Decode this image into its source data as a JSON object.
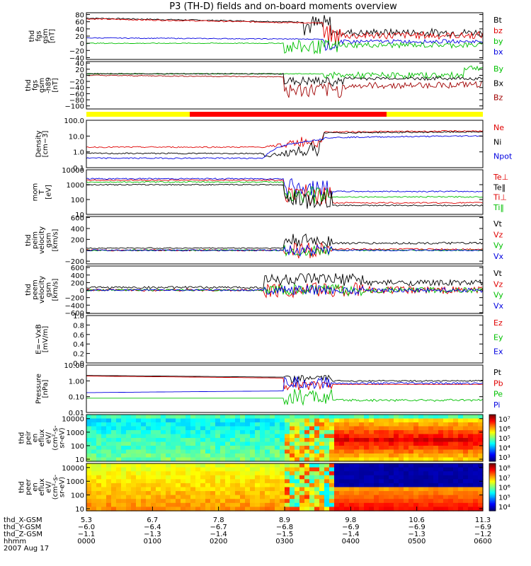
{
  "title": "P3 (TH-D) fields and on-board moments overview",
  "colors": {
    "black": "#000000",
    "red": "#e00000",
    "green": "#00c000",
    "blue": "#0000e0",
    "darkred": "#a00000"
  },
  "bar_colors": {
    "yellow": "#ffff00",
    "red": "#ff0000"
  },
  "panels": [
    {
      "id": "fgs",
      "ylabel": [
        "thd",
        "fgs",
        "gsm",
        "[nT]"
      ],
      "ticks": [
        "80",
        "60",
        "40",
        "20",
        "0",
        "−20",
        "−40"
      ],
      "tick_values": [
        80,
        60,
        40,
        20,
        0,
        -20,
        -40
      ],
      "ylim": [
        -45,
        85
      ],
      "legend": [
        {
          "text": "Bt",
          "color": "black"
        },
        {
          "text": "bz",
          "color": "red"
        },
        {
          "text": "by",
          "color": "green"
        },
        {
          "text": "bx",
          "color": "blue"
        }
      ]
    },
    {
      "id": "fgs2",
      "ylabel": [
        "thd",
        "fgs",
        "gsm",
        "-h89",
        "[nT]"
      ],
      "ticks": [
        "40",
        "20",
        "0",
        "−20",
        "−40",
        "−60",
        "−80",
        "−100"
      ],
      "tick_values": [
        40,
        20,
        0,
        -20,
        -40,
        -60,
        -80,
        -100
      ],
      "ylim": [
        -110,
        45
      ],
      "legend": [
        {
          "text": "By",
          "color": "green"
        },
        {
          "text": "Bx",
          "color": "black"
        },
        {
          "text": "Bz",
          "color": "darkred"
        }
      ]
    },
    {
      "id": "density",
      "ylabel": [
        "Density",
        "[cm−3]"
      ],
      "ticks": [
        "100.0",
        "10.0",
        "1.0",
        "0.1"
      ],
      "tick_values": [
        100,
        10,
        1,
        0.1
      ],
      "ylim": [
        0.1,
        100
      ],
      "log": true,
      "legend": [
        {
          "text": "Ne",
          "color": "red"
        },
        {
          "text": "Ni",
          "color": "black"
        },
        {
          "text": "Npot",
          "color": "blue"
        }
      ]
    },
    {
      "id": "temp",
      "ylabel": [
        "mom",
        "T",
        "[eV]"
      ],
      "ticks": [
        "10000",
        "1000",
        "100",
        "10"
      ],
      "tick_values": [
        10000,
        1000,
        100,
        10
      ],
      "ylim": [
        10,
        10000
      ],
      "log": true,
      "legend": [
        {
          "text": "Te⊥",
          "color": "red"
        },
        {
          "text": "Te‖",
          "color": "black"
        },
        {
          "text": "Ti⊥",
          "color": "red"
        },
        {
          "text": "Ti‖",
          "color": "green"
        }
      ]
    },
    {
      "id": "peim",
      "ylabel": [
        "thd",
        "peim",
        "velocity",
        "gsm",
        "[km/s]"
      ],
      "ticks": [
        "600",
        "400",
        "200",
        "0",
        "−200"
      ],
      "tick_values": [
        600,
        400,
        200,
        0,
        -200
      ],
      "ylim": [
        -250,
        620
      ],
      "legend": [
        {
          "text": "Vt",
          "color": "black"
        },
        {
          "text": "Vz",
          "color": "red"
        },
        {
          "text": "Vy",
          "color": "green"
        },
        {
          "text": "Vx",
          "color": "blue"
        }
      ]
    },
    {
      "id": "peem",
      "ylabel": [
        "thd",
        "peem",
        "velocity",
        "gsm",
        "[km/s]"
      ],
      "ticks": [
        "600",
        "400",
        "200",
        "0",
        "−200",
        "−400",
        "−600"
      ],
      "tick_values": [
        600,
        400,
        200,
        0,
        -200,
        -400,
        -600
      ],
      "ylim": [
        -620,
        640
      ],
      "legend": [
        {
          "text": "Vt",
          "color": "black"
        },
        {
          "text": "Vz",
          "color": "red"
        },
        {
          "text": "Vy",
          "color": "green"
        },
        {
          "text": "Vx",
          "color": "blue"
        }
      ]
    },
    {
      "id": "efield",
      "ylabel": [
        "E=−VxB",
        "[mV/m]"
      ],
      "ticks": [
        "1.0",
        "0.8",
        "0.6",
        "0.4",
        "0.2",
        "0.0"
      ],
      "tick_values": [
        1.0,
        0.8,
        0.6,
        0.4,
        0.2,
        0.0
      ],
      "ylim": [
        0,
        1
      ],
      "legend": [
        {
          "text": "Ez",
          "color": "red"
        },
        {
          "text": "Ey",
          "color": "green"
        },
        {
          "text": "Ex",
          "color": "blue"
        }
      ]
    },
    {
      "id": "pressure",
      "ylabel": [
        "Pressure",
        "[nPa]"
      ],
      "ticks": [
        "10.00",
        "1.00",
        "0.10",
        "0.01"
      ],
      "tick_values": [
        10,
        1,
        0.1,
        0.01
      ],
      "ylim": [
        0.01,
        10
      ],
      "log": true,
      "legend": [
        {
          "text": "Pt",
          "color": "black"
        },
        {
          "text": "Pb",
          "color": "red"
        },
        {
          "text": "Pe",
          "color": "green"
        },
        {
          "text": "Pi",
          "color": "blue"
        }
      ]
    },
    {
      "id": "peir",
      "ylabel": [
        "thd",
        "peir",
        "en",
        "eflux",
        "eV/",
        "(cm²-s-",
        "sr-eV)"
      ],
      "ticks": [
        "10000",
        "1000",
        "100",
        "10"
      ],
      "tick_values": [
        10000,
        1000,
        100,
        10
      ],
      "ylim": [
        7,
        20000
      ],
      "log": true,
      "spectrogram": true,
      "cbar_ticks": [
        "10⁷",
        "10⁶",
        "10⁵",
        "10⁴",
        "10³"
      ]
    },
    {
      "id": "peer",
      "ylabel": [
        "thd",
        "peer",
        "en",
        "eflux",
        "eV/",
        "(cm²-s-",
        "sr-eV)"
      ],
      "ticks": [
        "10000",
        "1000",
        "100",
        "10"
      ],
      "tick_values": [
        10000,
        1000,
        100,
        10
      ],
      "ylim": [
        7,
        20000
      ],
      "log": true,
      "spectrogram": true,
      "cbar_ticks": [
        "10⁸",
        "10⁷",
        "10⁶",
        "10⁵",
        "10⁴"
      ]
    }
  ],
  "xaxis": {
    "row_labels": [
      "thd_X-GSM",
      "thd_Y-GSM",
      "thd_Z-GSM",
      "hhmm",
      "2007 Aug 17"
    ],
    "ticks": [
      {
        "x": "5.3",
        "y": "−6.0",
        "z": "−1.1",
        "hhmm": "0000"
      },
      {
        "x": "6.7",
        "y": "−6.4",
        "z": "−1.3",
        "hhmm": "0100"
      },
      {
        "x": "7.8",
        "y": "−6.7",
        "z": "−1.4",
        "hhmm": "0200"
      },
      {
        "x": "8.9",
        "y": "−6.8",
        "z": "−1.5",
        "hhmm": "0300"
      },
      {
        "x": "9.8",
        "y": "−6.9",
        "z": "−1.4",
        "hhmm": "0400"
      },
      {
        "x": "10.6",
        "y": "−6.9",
        "z": "−1.3",
        "hhmm": "0500"
      },
      {
        "x": "11.3",
        "y": "−6.9",
        "z": "−1.2",
        "hhmm": "0600"
      }
    ]
  },
  "chart_data": {
    "type": "line",
    "title": "P3 (TH-D) fields and on-board moments overview",
    "x": [
      "0000",
      "0100",
      "0200",
      "0300",
      "0400",
      "0500",
      "0600"
    ],
    "series": [
      {
        "name": "Bt",
        "values": [
          70,
          64,
          58,
          52,
          45,
          30,
          25
        ]
      },
      {
        "name": "bz",
        "values": [
          68,
          62,
          55,
          48,
          25,
          20,
          20
        ]
      },
      {
        "name": "by",
        "values": [
          0,
          0,
          0,
          0,
          -10,
          -5,
          -5
        ]
      },
      {
        "name": "bx",
        "values": [
          15,
          14,
          12,
          10,
          -5,
          5,
          8
        ]
      },
      {
        "name": "Ne",
        "values": [
          2,
          2,
          2,
          1.5,
          20,
          25,
          30
        ]
      },
      {
        "name": "Ni",
        "values": [
          0.8,
          0.8,
          0.8,
          1,
          15,
          20,
          20
        ]
      },
      {
        "name": "Npot",
        "values": [
          0.4,
          0.4,
          0.4,
          0.6,
          10,
          12,
          15
        ]
      }
    ]
  }
}
